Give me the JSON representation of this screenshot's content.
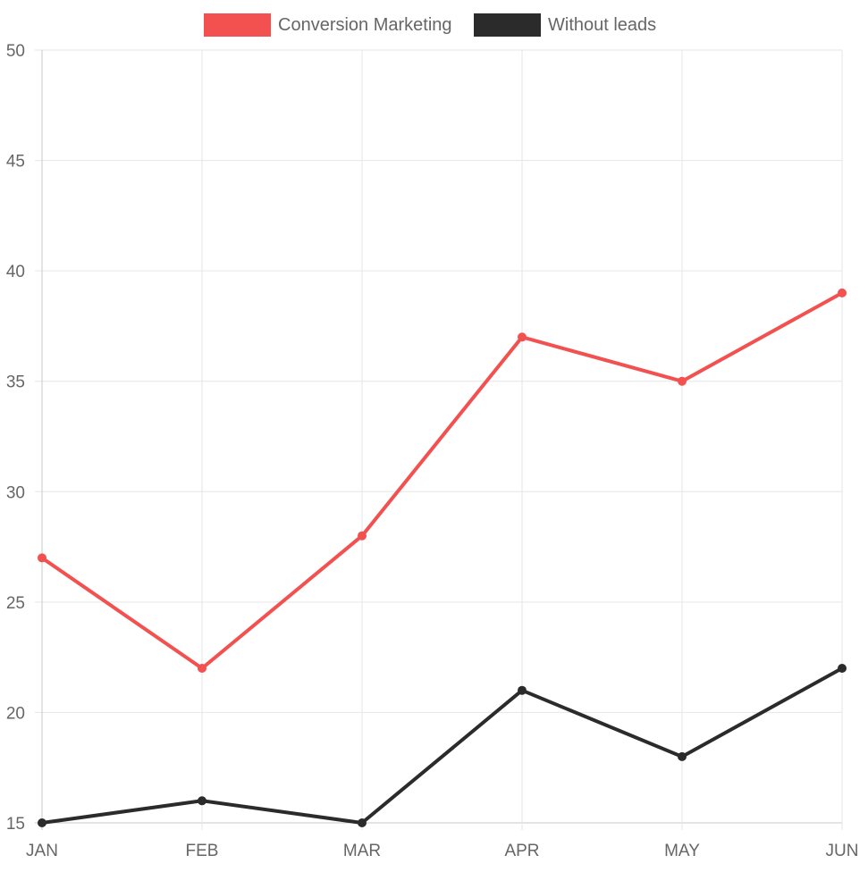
{
  "chart_data": {
    "type": "line",
    "title": "",
    "xlabel": "",
    "ylabel": "",
    "categories": [
      "JAN",
      "FEB",
      "MAR",
      "APR",
      "MAY",
      "JUN"
    ],
    "ylim": [
      15,
      50
    ],
    "yticks": [
      15,
      20,
      25,
      30,
      35,
      40,
      45,
      50
    ],
    "grid": true,
    "legend_position": "top-center",
    "series": [
      {
        "name": "Conversion Marketing",
        "values": [
          27,
          22,
          28,
          37,
          35,
          39
        ],
        "color": "#f2514f"
      },
      {
        "name": "Without leads",
        "values": [
          15,
          16,
          15,
          21,
          18,
          22
        ],
        "color": "#2b2b2b"
      }
    ]
  }
}
